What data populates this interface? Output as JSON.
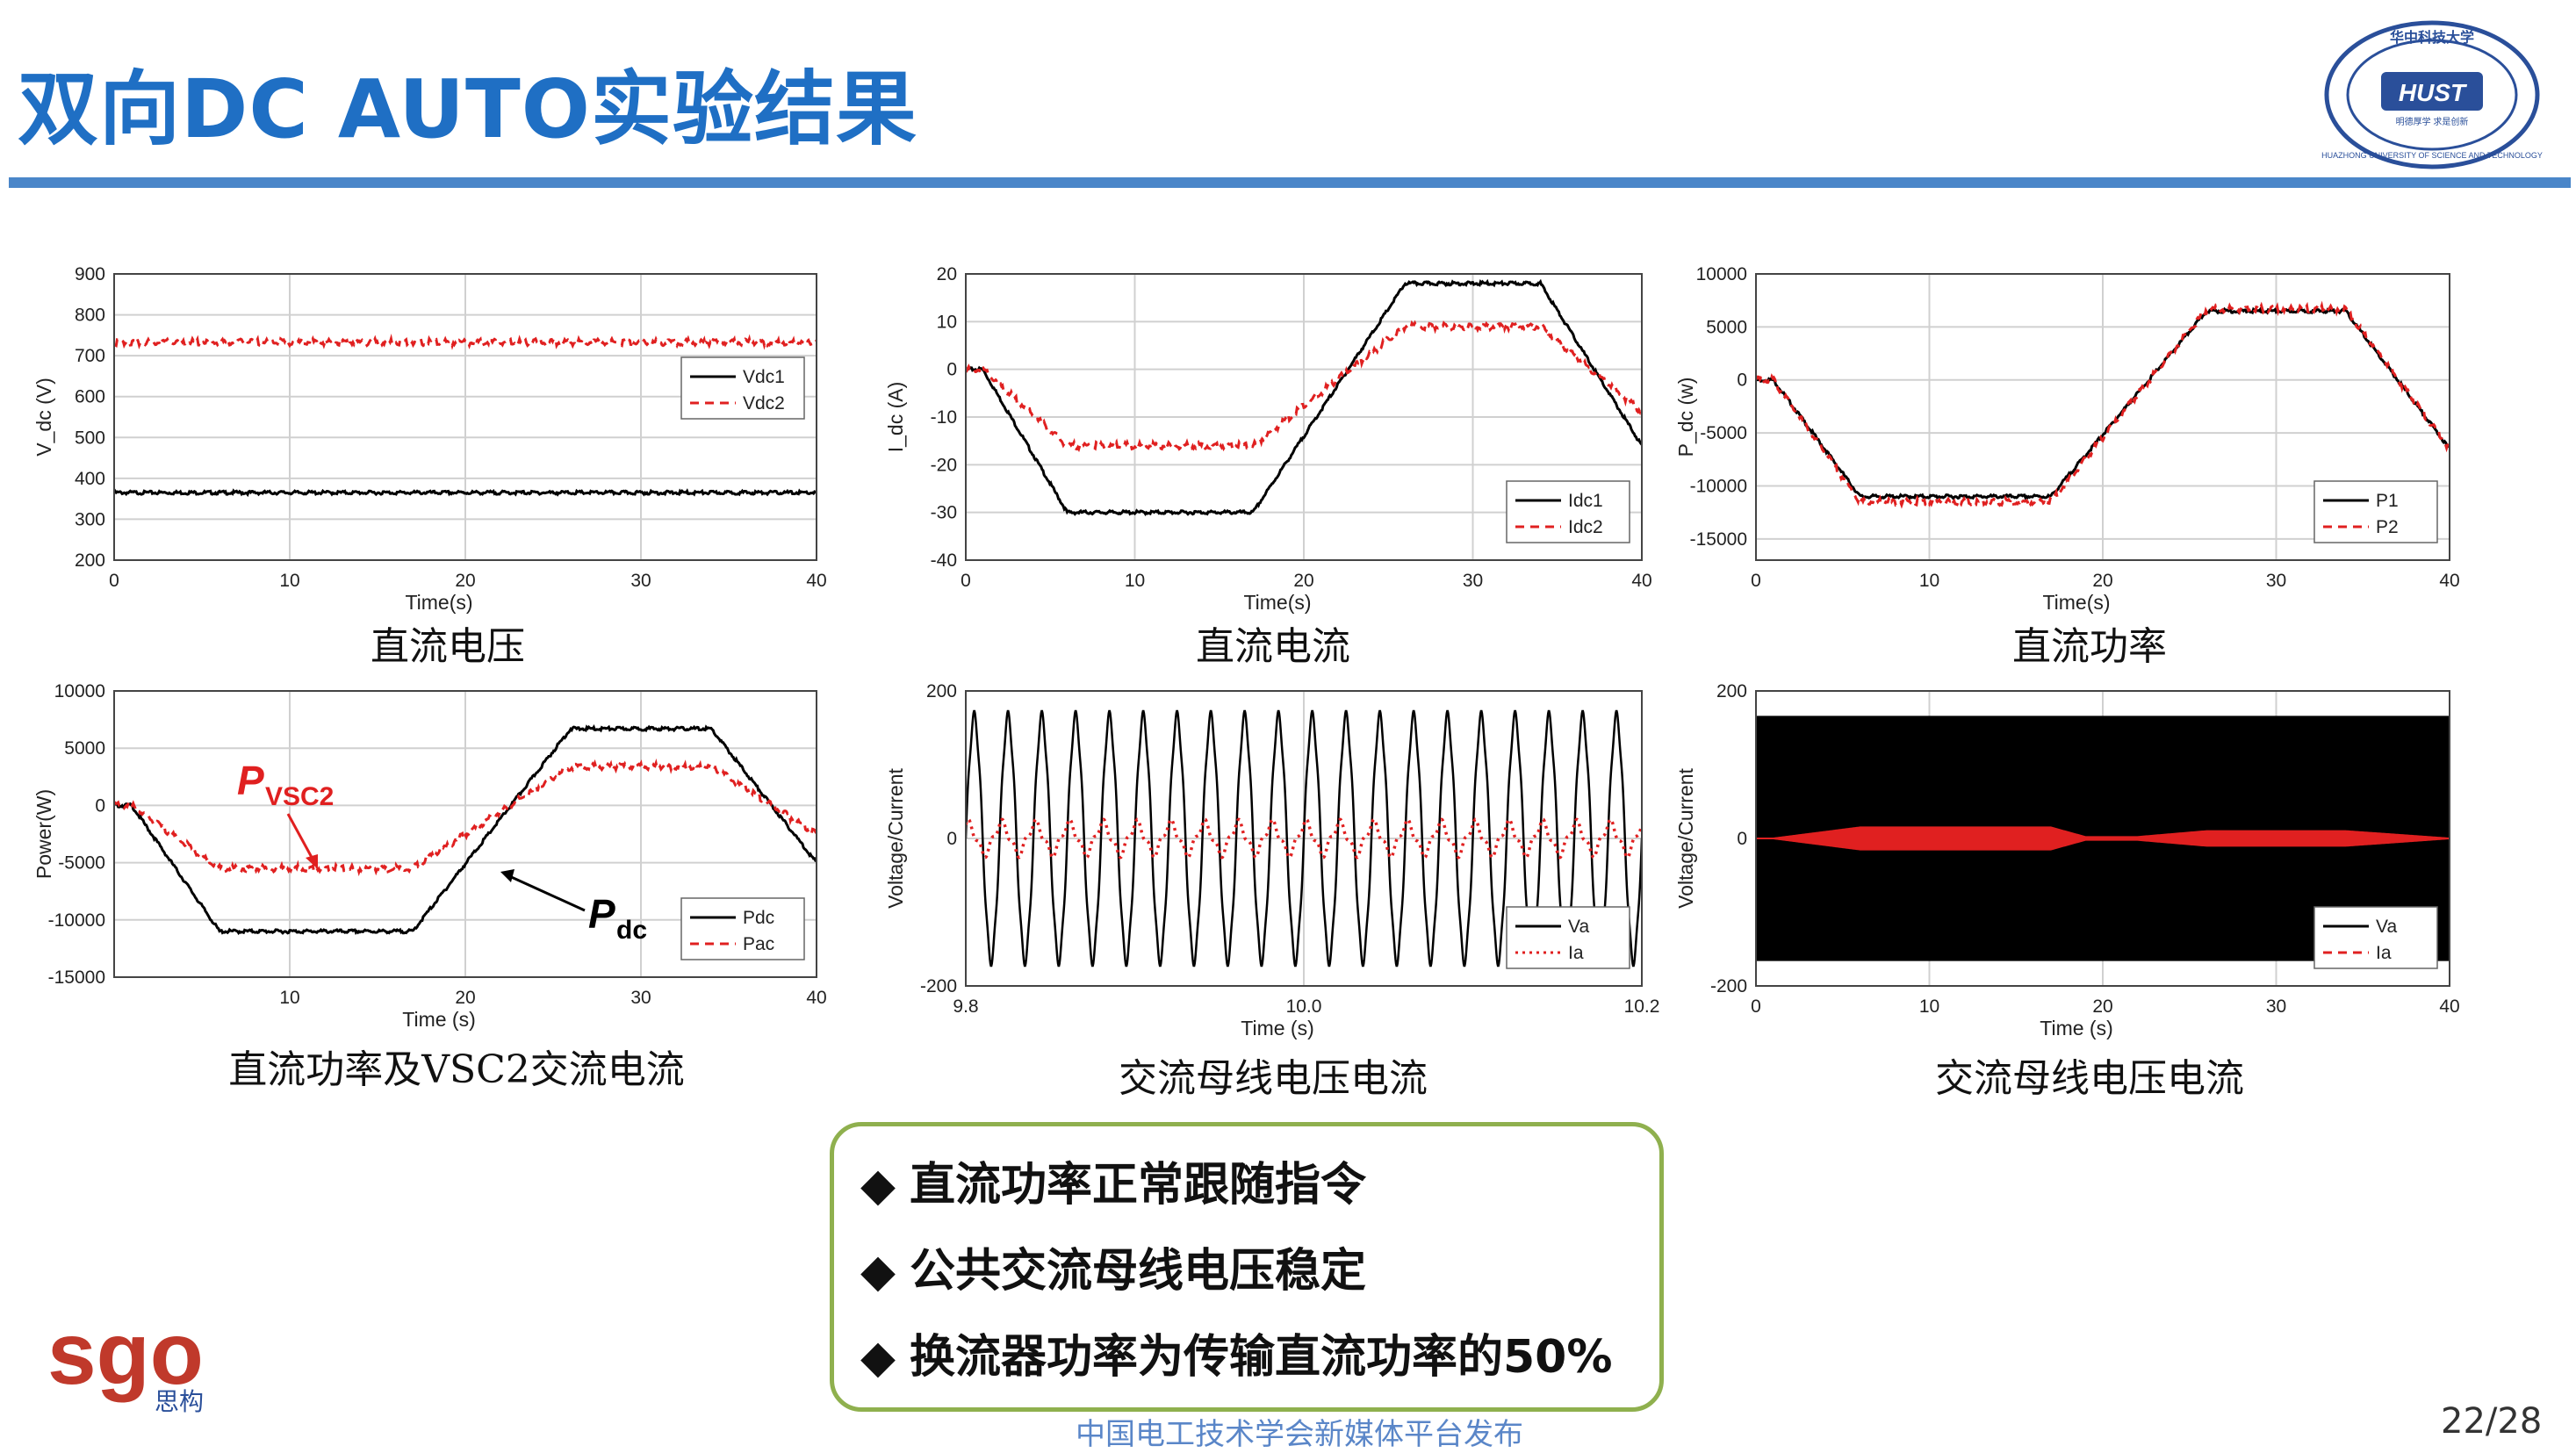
{
  "slide": {
    "title": "双向DC AUTO实验结果",
    "footer": "中国电工技术学会新媒体平台发布",
    "page": "22/28",
    "logo_text": "sgo",
    "logo_sub": "思构",
    "university_logo": {
      "text_top": "华中科技大学",
      "text_center": "HUST",
      "text_bottom": "HUAZHONG UNIVERSITY OF SCIENCE AND TECHNOLOGY",
      "motto": "明德厚学 求是创新"
    }
  },
  "summary": {
    "bullet": "◆",
    "items": [
      "直流功率正常跟随指令",
      "公共交流母线电压稳定",
      "换流器功率为传输直流功率的50%"
    ]
  },
  "chart_data": [
    {
      "id": "vdc",
      "type": "line",
      "caption": "直流电压",
      "xlabel": "Time(s)",
      "ylabel": "V_dc (V)",
      "xlim": [
        0,
        40
      ],
      "ylim": [
        200,
        900
      ],
      "xticks": [
        0,
        10,
        20,
        30,
        40
      ],
      "yticks": [
        200,
        300,
        400,
        500,
        600,
        700,
        800,
        900
      ],
      "legend": "top-right",
      "series": [
        {
          "name": "Vdc1",
          "color": "#000000",
          "style": "solid",
          "x": [
            0,
            40
          ],
          "y": [
            365,
            365
          ]
        },
        {
          "name": "Vdc2",
          "color": "#e02020",
          "style": "dashed",
          "x": [
            0,
            40
          ],
          "y": [
            733,
            733
          ]
        }
      ]
    },
    {
      "id": "idc",
      "type": "line",
      "caption": "直流电流",
      "xlabel": "Time(s)",
      "ylabel": "I_dc (A)",
      "xlim": [
        0,
        40
      ],
      "ylim": [
        -40,
        20
      ],
      "xticks": [
        0,
        10,
        20,
        30,
        40
      ],
      "yticks": [
        -40,
        -30,
        -20,
        -10,
        0,
        10,
        20
      ],
      "legend": "bottom-right",
      "series": [
        {
          "name": "Idc1",
          "color": "#000000",
          "style": "solid",
          "x": [
            0,
            1,
            6,
            17,
            26,
            34,
            40
          ],
          "y": [
            0,
            0,
            -30,
            -30,
            18,
            18,
            -16
          ]
        },
        {
          "name": "Idc2",
          "color": "#e02020",
          "style": "dashed",
          "x": [
            0,
            1,
            6,
            17,
            26,
            34,
            40
          ],
          "y": [
            0,
            0,
            -16,
            -16,
            9,
            9,
            -9
          ]
        }
      ]
    },
    {
      "id": "pdc",
      "type": "line",
      "caption": "直流功率",
      "xlabel": "Time(s)",
      "ylabel": "P_dc (w)",
      "xlim": [
        0,
        40
      ],
      "ylim": [
        -17000,
        10000
      ],
      "xticks": [
        0,
        10,
        20,
        30,
        40
      ],
      "yticks": [
        -15000,
        -10000,
        -5000,
        0,
        5000,
        10000
      ],
      "legend": "bottom-right",
      "series": [
        {
          "name": "P1",
          "color": "#000000",
          "style": "solid",
          "x": [
            0,
            1,
            6,
            17,
            26,
            34,
            40
          ],
          "y": [
            0,
            0,
            -11000,
            -11000,
            6500,
            6500,
            -6500
          ]
        },
        {
          "name": "P2",
          "color": "#e02020",
          "style": "dashed",
          "x": [
            0,
            1,
            6,
            17,
            26,
            34,
            40
          ],
          "y": [
            0,
            0,
            -11500,
            -11500,
            6700,
            6700,
            -6500
          ]
        }
      ]
    },
    {
      "id": "pvsc",
      "type": "line",
      "caption": "直流功率及VSC2交流电流",
      "xlabel": "Time (s)",
      "ylabel": "Power(W)",
      "xlim": [
        0,
        40
      ],
      "ylim": [
        -15000,
        10000
      ],
      "xticks": [
        10,
        20,
        30,
        40
      ],
      "yticks": [
        -15000,
        -10000,
        -5000,
        0,
        5000,
        10000
      ],
      "legend": "bottom-right",
      "annotations": [
        {
          "text": "P",
          "sub": "VSC2",
          "color": "#e02020"
        },
        {
          "text": "P",
          "sub": "dc",
          "color": "#000000"
        }
      ],
      "series": [
        {
          "name": "Pdc",
          "color": "#000000",
          "style": "solid",
          "x": [
            0,
            1,
            6,
            17,
            26,
            34,
            40
          ],
          "y": [
            0,
            0,
            -11000,
            -11000,
            6700,
            6700,
            -5000
          ]
        },
        {
          "name": "Pac",
          "color": "#e02020",
          "style": "dashed",
          "x": [
            0,
            1,
            6,
            17,
            26,
            34,
            40
          ],
          "y": [
            0,
            0,
            -5500,
            -5500,
            3400,
            3400,
            -2500
          ]
        }
      ]
    },
    {
      "id": "ac_zoom",
      "type": "line",
      "caption": "交流母线电压电流",
      "xlabel": "Time (s)",
      "ylabel": "Voltage/Current",
      "xlim": [
        9.8,
        10.2
      ],
      "ylim": [
        -200,
        200
      ],
      "xticks": [
        9.8,
        10.0,
        10.2
      ],
      "xtick_labels": [
        "9.8",
        "10.0",
        "10.2"
      ],
      "yticks": [
        -200,
        0,
        200
      ],
      "legend": "bottom-right",
      "series": [
        {
          "name": "Va",
          "color": "#000000",
          "style": "solid",
          "frequency_hz": 50,
          "amplitude": 165
        },
        {
          "name": "Ia",
          "color": "#e02020",
          "style": "dotted",
          "frequency_hz": 50,
          "amplitude": 20
        }
      ]
    },
    {
      "id": "ac_full",
      "type": "line",
      "caption": "交流母线电压电流",
      "xlabel": "Time (s)",
      "ylabel": "Voltage/Current",
      "xlim": [
        0,
        40
      ],
      "ylim": [
        -200,
        200
      ],
      "xticks": [
        0,
        10,
        20,
        30,
        40
      ],
      "yticks": [
        -200,
        0,
        200
      ],
      "legend": "bottom-right",
      "series": [
        {
          "name": "Va",
          "color": "#000000",
          "style": "solid",
          "envelope_x": [
            0,
            40
          ],
          "envelope": [
            165,
            165
          ]
        },
        {
          "name": "Ia",
          "color": "#e02020",
          "style": "dashed",
          "envelope_x": [
            0,
            1,
            6,
            17,
            19,
            22,
            26,
            34,
            40
          ],
          "envelope": [
            0,
            0,
            15,
            15,
            2,
            2,
            10,
            10,
            0
          ]
        }
      ]
    }
  ]
}
